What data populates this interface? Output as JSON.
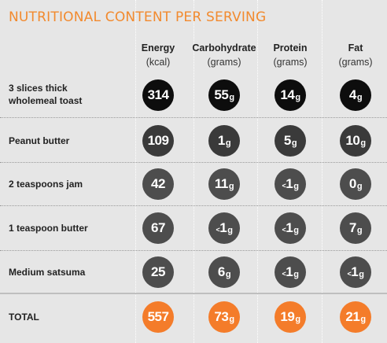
{
  "title": "NUTRITIONAL CONTENT PER SERVING",
  "columns": [
    {
      "name": "Energy",
      "unit": "(kcal)"
    },
    {
      "name": "Carbohydrate",
      "unit": "(grams)"
    },
    {
      "name": "Protein",
      "unit": "(grams)"
    },
    {
      "name": "Fat",
      "unit": "(grams)"
    }
  ],
  "rows": [
    {
      "label_line1": "3 slices thick",
      "label_line2": "wholemeal toast",
      "energy": "314",
      "carbohydrate": "55",
      "protein": "14",
      "fat": "4"
    },
    {
      "label_line1": "Peanut butter",
      "label_line2": "",
      "energy": "109",
      "carbohydrate": "1",
      "protein": "5",
      "fat": "10"
    },
    {
      "label_line1": "2 teaspoons jam",
      "label_line2": "",
      "energy": "42",
      "carbohydrate": "11",
      "protein": "<1",
      "fat": "0"
    },
    {
      "label_line1": "1 teaspoon butter",
      "label_line2": "",
      "energy": "67",
      "carbohydrate": "<1",
      "protein": "<1",
      "fat": "7"
    },
    {
      "label_line1": "Medium satsuma",
      "label_line2": "",
      "energy": "25",
      "carbohydrate": "6",
      "protein": "<1",
      "fat": "<1"
    }
  ],
  "total": {
    "label": "TOTAL",
    "energy": "557",
    "carbohydrate": "73",
    "protein": "19",
    "fat": "21"
  },
  "gram_unit": "g",
  "less_than": "<",
  "colors": {
    "accent_orange": "#f47c2a",
    "title_orange": "#f28a2e",
    "row1_circle": "#0d0d0d",
    "row2_circle": "#3a3a3a",
    "row_other_circle": "#4d4d4d",
    "panel_bg": "#e6e6e6"
  }
}
